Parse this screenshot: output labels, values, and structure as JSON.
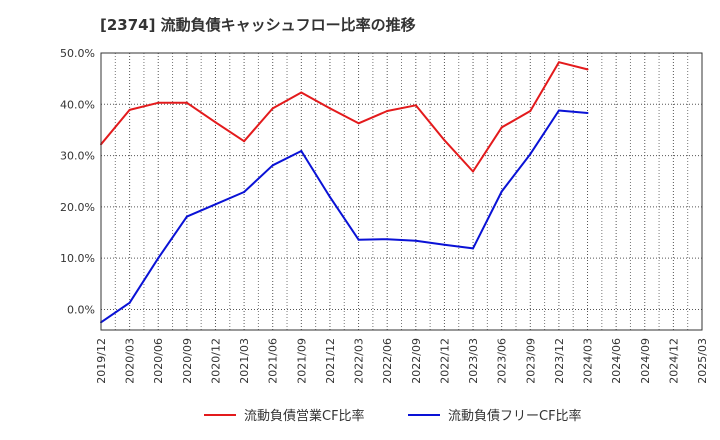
{
  "chart_data": {
    "type": "line",
    "title": "[2374]  流動負債キャッシュフロー比率の推移",
    "x": [
      "2019/12",
      "2020/03",
      "2020/06",
      "2020/09",
      "2020/12",
      "2021/03",
      "2021/06",
      "2021/09",
      "2021/12",
      "2022/03",
      "2022/06",
      "2022/09",
      "2022/12",
      "2023/03",
      "2023/06",
      "2023/09",
      "2023/12",
      "2024/03",
      "2024/06",
      "2024/09",
      "2024/12",
      "2025/03"
    ],
    "y_ticks": [
      "50.0%",
      "40.0%",
      "30.0%",
      "20.0%",
      "10.0%",
      "0.0%"
    ],
    "ylim": [
      -4,
      50
    ],
    "grid": true,
    "legend_position": "bottom",
    "series": [
      {
        "name": "流動負債営業CF比率",
        "color": "#e31a1c",
        "values": [
          32.2,
          38.9,
          40.3,
          40.3,
          36.5,
          32.8,
          39.2,
          42.3,
          39.2,
          36.3,
          38.7,
          39.8,
          33.0,
          26.9,
          35.5,
          38.7,
          48.2,
          46.8,
          null,
          null,
          null,
          null
        ]
      },
      {
        "name": "流動負債フリーCF比率",
        "color": "#0a12d6",
        "values": [
          -2.5,
          1.3,
          10.0,
          18.1,
          20.5,
          22.9,
          28.1,
          30.9,
          21.9,
          13.6,
          13.7,
          13.4,
          12.6,
          11.9,
          23.0,
          30.3,
          38.8,
          38.3,
          null,
          null,
          null,
          null
        ]
      }
    ]
  }
}
